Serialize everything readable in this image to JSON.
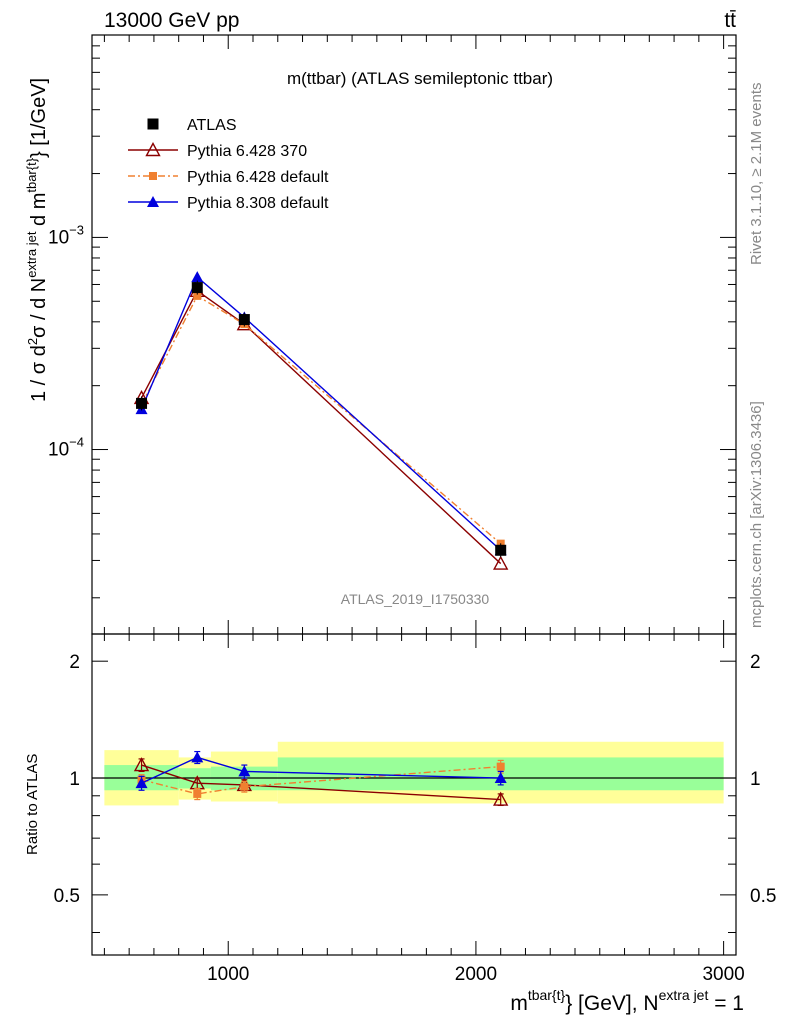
{
  "header": {
    "left": "13000 GeV pp",
    "right": "tt̄"
  },
  "side_labels": {
    "rivet": "Rivet 3.1.10, ≥ 2.1M events",
    "mcplots": "mcplots.cern.ch [arXiv:1306.3436]"
  },
  "watermark": "ATLAS_2019_I1750330",
  "chart_data": [
    {
      "panel": "main",
      "type": "line",
      "title": "m(ttbar) (ATLAS semileptonic ttbar)",
      "xlabel": "m^{tbar{t}} [GeV], N^{extra jet} = 1",
      "ylabel": "1 / σ d²σ / d N^{extra jet} d m^{tbar{t}} [1/GeV]",
      "yscale": "log",
      "xlim": [
        450,
        3050
      ],
      "ylim": [
        1.35e-05,
        0.009
      ],
      "y_ticks": [
        {
          "value": 0.001,
          "base": "10",
          "exp": "−3"
        },
        {
          "value": 0.0001,
          "base": "10",
          "exp": "−4"
        }
      ],
      "legend_position": "top-left",
      "data": {
        "name": "ATLAS",
        "color": "#000000",
        "x": [
          650,
          875,
          1065,
          2100
        ],
        "y": [
          0.000165,
          0.00058,
          0.00041,
          3.35e-05
        ],
        "bins": [
          [
            500,
            800
          ],
          [
            800,
            950
          ],
          [
            950,
            1200
          ],
          [
            1200,
            3000
          ]
        ]
      },
      "series": [
        {
          "name": "Pythia 6.428 370",
          "color": "#8b0000",
          "marker": "open-triangle",
          "line": "solid",
          "x": [
            650,
            875,
            1065,
            2100
          ],
          "y": [
            0.000175,
            0.00056,
            0.00039,
            2.9e-05
          ]
        },
        {
          "name": "Pythia 6.428 default",
          "color": "#f08030",
          "marker": "square",
          "line": "dashdot",
          "x": [
            650,
            875,
            1065,
            2100
          ],
          "y": [
            0.000163,
            0.00053,
            0.00039,
            3.6e-05
          ]
        },
        {
          "name": "Pythia 8.308 default",
          "color": "#0000dd",
          "marker": "triangle",
          "line": "solid",
          "x": [
            650,
            875,
            1065,
            2100
          ],
          "y": [
            0.000155,
            0.00065,
            0.00042,
            3.35e-05
          ]
        }
      ]
    },
    {
      "panel": "ratio",
      "type": "line",
      "ylabel": "Ratio to ATLAS",
      "xlim": [
        450,
        3050
      ],
      "ylim": [
        0.35,
        2.35
      ],
      "x_ticks": [
        {
          "value": 1000,
          "label": "1000"
        },
        {
          "value": 2000,
          "label": "2000"
        },
        {
          "value": 3000,
          "label": "3000"
        }
      ],
      "y_ticks": [
        {
          "value": 2,
          "label": "2"
        },
        {
          "value": 1,
          "label": "1"
        },
        {
          "value": 0.5,
          "label": "0.5"
        }
      ],
      "bands": [
        {
          "x0": 500,
          "x1": 800,
          "yellow": [
            0.85,
            1.18
          ],
          "green": [
            0.93,
            1.08
          ]
        },
        {
          "x0": 800,
          "x1": 930,
          "yellow": [
            0.88,
            1.13
          ],
          "green": [
            0.94,
            1.06
          ]
        },
        {
          "x0": 930,
          "x1": 1200,
          "yellow": [
            0.87,
            1.17
          ],
          "green": [
            0.93,
            1.07
          ]
        },
        {
          "x0": 1200,
          "x1": 3000,
          "yellow": [
            0.86,
            1.24
          ],
          "green": [
            0.93,
            1.13
          ]
        }
      ],
      "series": [
        {
          "name": "Pythia 6.428 370",
          "color": "#8b0000",
          "marker": "open-triangle",
          "line": "solid",
          "x": [
            650,
            875,
            1065,
            2100
          ],
          "y": [
            1.08,
            0.97,
            0.96,
            0.88
          ],
          "err": [
            0.04,
            0.03,
            0.03,
            0.03
          ]
        },
        {
          "name": "Pythia 6.428 default",
          "color": "#f08030",
          "marker": "square",
          "line": "dashdot",
          "x": [
            650,
            875,
            1065,
            2100
          ],
          "y": [
            0.99,
            0.91,
            0.95,
            1.07
          ],
          "err": [
            0.03,
            0.03,
            0.03,
            0.04
          ]
        },
        {
          "name": "Pythia 8.308 default",
          "color": "#0000dd",
          "marker": "triangle",
          "line": "solid",
          "x": [
            650,
            875,
            1065,
            2100
          ],
          "y": [
            0.97,
            1.13,
            1.04,
            1.0
          ],
          "err": [
            0.04,
            0.04,
            0.04,
            0.04
          ]
        }
      ]
    }
  ]
}
